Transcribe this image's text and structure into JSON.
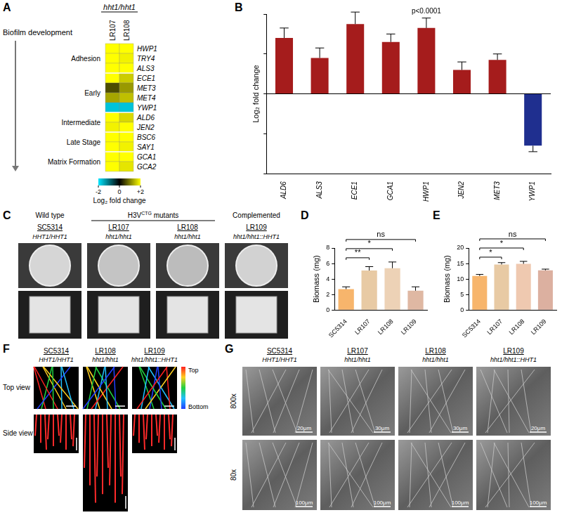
{
  "chart_data": [
    {
      "panel": "A",
      "type": "heatmap",
      "column_header": "hht1/hht1",
      "columns": [
        "LR107",
        "LR108"
      ],
      "row_title": "Biofilm development",
      "groups": [
        {
          "label": "Adhesion",
          "rows": [
            {
              "gene": "HWP1",
              "values": [
                2,
                2
              ]
            },
            {
              "gene": "TRY4",
              "values": [
                2,
                1.9
              ]
            },
            {
              "gene": "ALS3",
              "values": [
                2,
                2
              ]
            }
          ]
        },
        {
          "label": "Early",
          "rows": [
            {
              "gene": "ECE1",
              "values": [
                2,
                1.6
              ]
            },
            {
              "gene": "MET3",
              "values": [
                0.6,
                1.2
              ]
            },
            {
              "gene": "MET4",
              "values": [
                1.3,
                1.5
              ]
            },
            {
              "gene": "YWP1",
              "values": [
                -1.7,
                -1.7
              ]
            }
          ]
        },
        {
          "label": "Intermediate",
          "rows": [
            {
              "gene": "ALD6",
              "values": [
                2,
                1.7
              ]
            },
            {
              "gene": "JEN2",
              "values": [
                1.9,
                2
              ]
            }
          ]
        },
        {
          "label": "Late Stage",
          "rows": [
            {
              "gene": "BSC6",
              "values": [
                2,
                2
              ]
            },
            {
              "gene": "SAY1",
              "values": [
                2,
                1.9
              ]
            }
          ]
        },
        {
          "label": "Matrix Formation",
          "rows": [
            {
              "gene": "GCA1",
              "values": [
                2,
                2
              ]
            },
            {
              "gene": "GCA2",
              "values": [
                2,
                1.8
              ]
            }
          ]
        }
      ],
      "colorbar": {
        "title": "Log₂ fold change",
        "range": [
          -2,
          2
        ],
        "ticks": [
          -2,
          0,
          {
            "value": 2,
            "label": "+2"
          }
        ],
        "colors": [
          "#00e5ff",
          "#000000",
          "#ffff00"
        ]
      }
    },
    {
      "panel": "B",
      "type": "bar",
      "categories": [
        "ALD6",
        "ALS3",
        "ECE1",
        "GCA1",
        "HWP1",
        "JEN2",
        "MET3",
        "YWP1"
      ],
      "values": [
        1.4,
        0.9,
        1.75,
        1.3,
        1.65,
        0.6,
        0.85,
        -1.3
      ],
      "errors": [
        0.25,
        0.25,
        0.3,
        0.2,
        0.25,
        0.2,
        0.15,
        0.15
      ],
      "colors": [
        "#a51c1c",
        "#a51c1c",
        "#a51c1c",
        "#a51c1c",
        "#a51c1c",
        "#a51c1c",
        "#a51c1c",
        "#1f2f8f"
      ],
      "y_label": "Log₂ fold change",
      "ylim": [
        -2,
        2
      ],
      "yticks": [
        -2,
        -1,
        0,
        1,
        2
      ],
      "tick_labels": "x",
      "grid": false,
      "annotations": [
        {
          "text": "p<0.0001",
          "category": "HWP1"
        }
      ]
    },
    {
      "panel": "D",
      "type": "bar",
      "categories": [
        "SC5314",
        "LR107",
        "LR108",
        "LR109"
      ],
      "values": [
        2.7,
        5.1,
        5.4,
        2.5
      ],
      "errors": [
        0.3,
        0.5,
        0.8,
        0.5
      ],
      "colors": [
        "#f7b56c",
        "#e8caa4",
        "#edd2b6",
        "#dfb8a3"
      ],
      "y_label": "Biomass (mg)",
      "ylim": [
        0,
        8
      ],
      "yticks": [
        0,
        2,
        4,
        6,
        8
      ],
      "grid": false,
      "comparisons": [
        {
          "from": "SC5314",
          "to": "LR107",
          "label": "**"
        },
        {
          "from": "SC5314",
          "to": "LR108",
          "label": "*"
        },
        {
          "from": "SC5314",
          "to": "LR109",
          "label": "ns"
        }
      ]
    },
    {
      "panel": "E",
      "type": "bar",
      "categories": [
        "SC5314",
        "LR107",
        "LR108",
        "LR109"
      ],
      "values": [
        11,
        14.7,
        14.9,
        12.8
      ],
      "errors": [
        0.5,
        0.6,
        0.8,
        0.4
      ],
      "colors": [
        "#f7b56c",
        "#e8caa4",
        "#efc9b0",
        "#dcb0a0"
      ],
      "y_label": "Biomass (mg)",
      "ylim": [
        0,
        20
      ],
      "yticks": [
        0,
        5,
        10,
        15,
        20
      ],
      "grid": false,
      "comparisons": [
        {
          "from": "SC5314",
          "to": "LR107",
          "label": "*"
        },
        {
          "from": "SC5314",
          "to": "LR108",
          "label": "*"
        },
        {
          "from": "SC5314",
          "to": "LR109",
          "label": "ns"
        }
      ]
    }
  ],
  "image_panels": [
    {
      "panel": "C",
      "groups": [
        {
          "label": {
            "text": "Wild type"
          },
          "strains": [
            {
              "name": "SC5314",
              "genotype": "HHT1/HHT1"
            }
          ]
        },
        {
          "label": {
            "text": "H3V",
            "sup": "CTG",
            "tail": " mutants"
          },
          "strains": [
            {
              "name": "LR107",
              "genotype": "hht1/hht1"
            },
            {
              "name": "LR108",
              "genotype": "hht1/hht1"
            }
          ]
        },
        {
          "label": {
            "text": "Complemented"
          },
          "strains": [
            {
              "name": "LR109",
              "genotype": "hht1/hht1::HHT1"
            }
          ]
        }
      ]
    },
    {
      "panel": "F",
      "strains": [
        {
          "name": "SC5314",
          "genotype": "HHT1/HHT1"
        },
        {
          "name": "LR108",
          "genotype": "hht1/hht1"
        },
        {
          "name": "LR109",
          "genotype": "hht1/hht1::HHT1"
        }
      ],
      "rows": [
        "Top view",
        "Side view"
      ],
      "depth_legend": [
        "Top",
        "Bottom"
      ]
    },
    {
      "panel": "G",
      "strains": [
        {
          "name": "SC5314",
          "genotype": "HHT1/HHT1"
        },
        {
          "name": "LR107",
          "genotype": "hht1/hht1"
        },
        {
          "name": "LR108",
          "genotype": "hht1/hht1"
        },
        {
          "name": "LR109",
          "genotype": "hht1/hht1::HHT1"
        }
      ],
      "rows": [
        {
          "label": "800x",
          "scale_bars": [
            "20μm",
            "30μm",
            "30μm",
            "20μm"
          ]
        },
        {
          "label": "80x",
          "scale_bars": [
            "100μm",
            "100μm",
            "100μm",
            "100μm"
          ]
        }
      ]
    }
  ]
}
